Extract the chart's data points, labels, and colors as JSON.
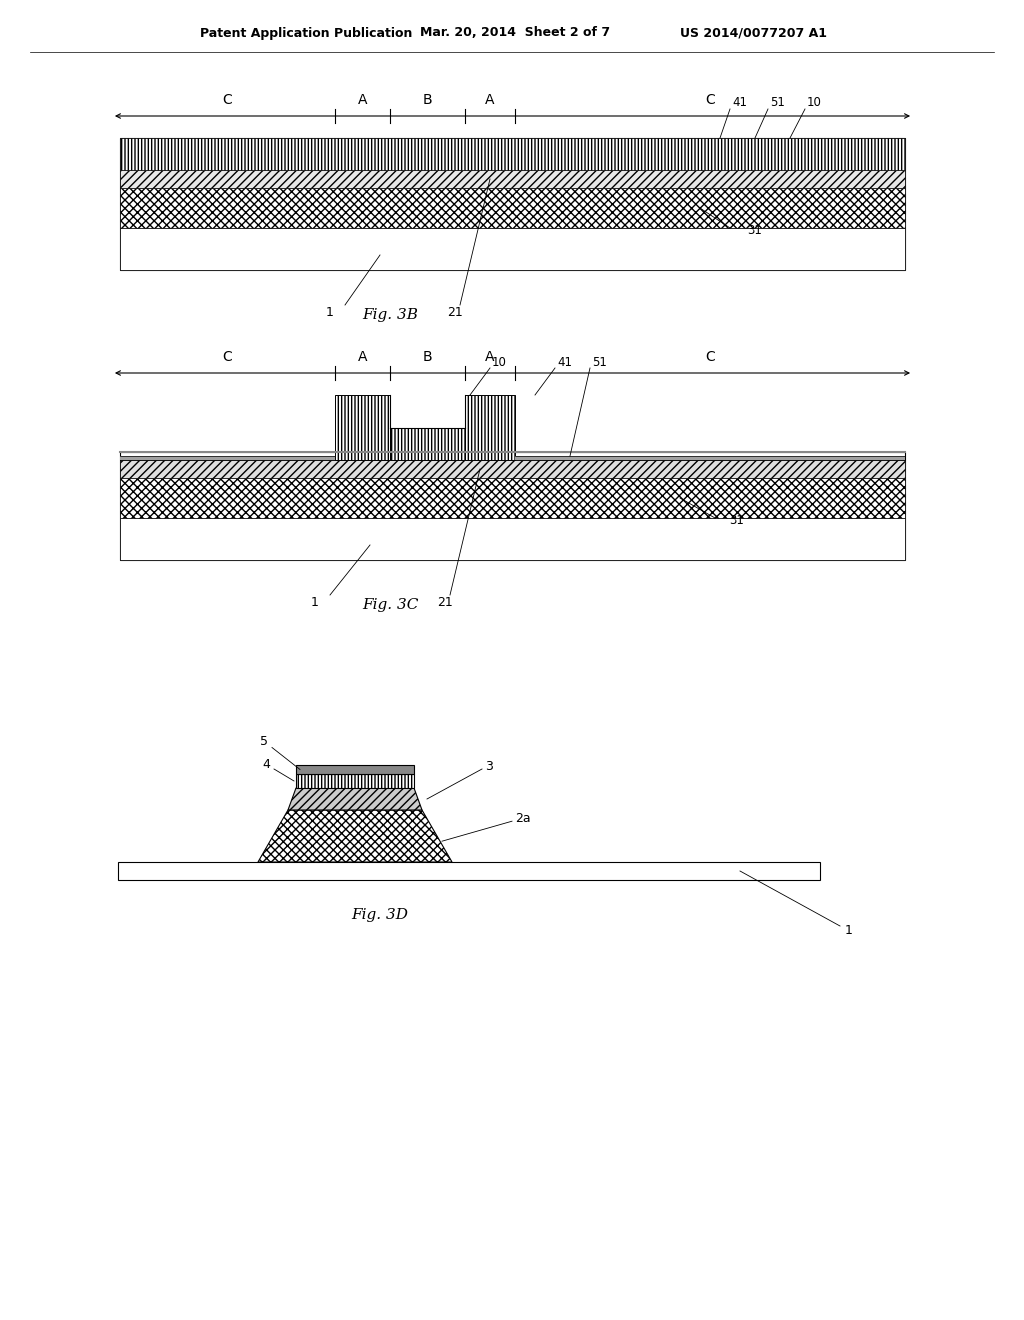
{
  "header_left": "Patent Application Publication",
  "header_mid": "Mar. 20, 2014  Sheet 2 of 7",
  "header_right": "US 2014/0077207 A1",
  "fig3b_label": "Fig. 3B",
  "fig3c_label": "Fig. 3C",
  "fig3d_label": "Fig. 3D",
  "bg_color": "#ffffff",
  "line_color": "#000000"
}
